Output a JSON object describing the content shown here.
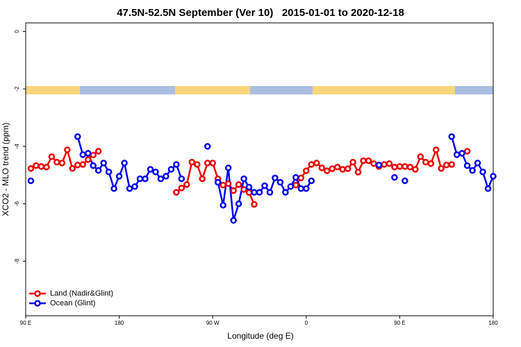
{
  "chart_data": {
    "type": "line",
    "title": "47.5N-52.5N September (Ver 10)   2015-01-01 to 2020-12-18",
    "x_label": "Longitude (deg E)",
    "y_label": "XCO2 - MLO trend (ppm)",
    "xlim": [
      90,
      540
    ],
    "ylim": [
      -9.9,
      0.3
    ],
    "xticks": [
      {
        "value": 90,
        "label": "90 E"
      },
      180,
      {
        "value": 270,
        "label": "90 W"
      },
      {
        "value": 360,
        "label": "0"
      },
      {
        "value": 450,
        "label": "90 E"
      },
      {
        "value": 540,
        "label": "180"
      }
    ],
    "yticks": [
      0,
      -2,
      -4,
      -6,
      -8
    ],
    "legend": "bottom-left",
    "x": [
      95,
      100,
      105,
      110,
      115,
      120,
      125,
      130,
      135,
      140,
      145,
      150,
      155,
      160,
      165,
      170,
      175,
      180,
      185,
      190,
      195,
      200,
      205,
      210,
      215,
      220,
      225,
      230,
      235,
      240,
      245,
      250,
      255,
      260,
      265,
      270,
      275,
      280,
      285,
      290,
      295,
      300,
      305,
      310,
      315,
      320,
      325,
      330,
      335,
      340,
      345,
      350,
      355,
      360,
      365,
      370,
      375,
      380,
      385,
      390,
      395,
      400,
      405,
      410,
      415,
      420,
      425,
      430,
      435,
      440,
      445,
      450,
      455,
      460,
      465,
      470,
      475,
      480,
      485,
      490,
      495,
      500,
      505,
      510,
      515,
      520,
      525,
      530,
      535,
      540
    ],
    "series": [
      {
        "name": "Land (Nadir&Glint)",
        "color": "#ee0000",
        "values": [
          -4.77,
          -4.67,
          -4.7,
          -4.72,
          -4.36,
          -4.55,
          -4.58,
          -4.12,
          -4.77,
          -4.65,
          -4.63,
          -4.46,
          -4.3,
          -4.17,
          null,
          null,
          null,
          null,
          null,
          null,
          null,
          null,
          null,
          null,
          null,
          null,
          null,
          null,
          -5.6,
          -5.45,
          -5.33,
          -4.55,
          -4.63,
          -5.13,
          -4.58,
          -4.58,
          -5.13,
          -5.35,
          -5.3,
          -5.54,
          -5.33,
          -5.5,
          -5.61,
          -6.02,
          null,
          null,
          null,
          null,
          null,
          null,
          null,
          -5.35,
          -5.1,
          -4.85,
          -4.63,
          -4.58,
          -4.75,
          -4.85,
          -4.78,
          -4.72,
          -4.8,
          -4.78,
          -4.55,
          -4.9,
          -4.5,
          -4.5,
          -4.6,
          -4.7,
          -4.63,
          -4.6,
          -4.72,
          -4.7,
          -4.7,
          -4.72,
          -4.8,
          -4.36,
          -4.55,
          -4.6,
          -4.12,
          -4.77,
          -4.65,
          -4.63,
          null,
          null,
          -4.17,
          null,
          null,
          null,
          null,
          null
        ]
      },
      {
        "name": "Ocean (Glint)",
        "color": "#0000ee",
        "values": [
          -5.2,
          null,
          null,
          null,
          null,
          null,
          null,
          null,
          null,
          -3.66,
          -4.29,
          -4.24,
          -4.67,
          -4.84,
          -4.58,
          -4.89,
          -5.47,
          -5.04,
          -4.58,
          -5.47,
          -5.4,
          -5.13,
          -5.13,
          -4.8,
          -4.89,
          -5.13,
          -5.04,
          -4.8,
          -4.63,
          -5.13,
          null,
          null,
          null,
          null,
          -4.0,
          null,
          -5.25,
          -6.05,
          -4.75,
          -6.58,
          -6.0,
          -5.13,
          -5.42,
          -5.6,
          -5.6,
          -5.37,
          -5.6,
          -5.1,
          -5.25,
          -5.6,
          -5.4,
          -5.08,
          -5.47,
          -5.47,
          -5.2,
          null,
          null,
          null,
          null,
          null,
          null,
          null,
          null,
          null,
          null,
          null,
          null,
          -4.65,
          null,
          null,
          -5.08,
          null,
          -5.2,
          null,
          null,
          null,
          null,
          null,
          null,
          null,
          null,
          -3.66,
          -4.29,
          -4.24,
          -4.67,
          -4.84,
          -4.58,
          -4.89,
          -5.47,
          -5.04
        ]
      }
    ]
  }
}
